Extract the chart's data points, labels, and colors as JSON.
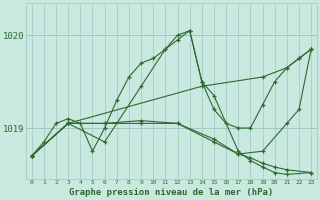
{
  "title": "Graphe pression niveau de la mer (hPa)",
  "bg_color": "#c8e8e0",
  "line_color": "#2d6a2d",
  "grid_color": "#a0c8c0",
  "xlim": [
    -0.5,
    23.5
  ],
  "ylim": [
    1018.45,
    1020.35
  ],
  "yticks": [
    1019,
    1020
  ],
  "xticks": [
    0,
    1,
    2,
    3,
    4,
    5,
    6,
    7,
    8,
    9,
    10,
    11,
    12,
    13,
    14,
    15,
    16,
    17,
    18,
    19,
    20,
    21,
    22,
    23
  ],
  "lines": [
    {
      "x": [
        0,
        1,
        2,
        3,
        4,
        5,
        6,
        7,
        8,
        9,
        10,
        11,
        12,
        13,
        14,
        15,
        16,
        17,
        18,
        19,
        20,
        21,
        22,
        23
      ],
      "y": [
        1018.7,
        1018.85,
        1019.05,
        1019.1,
        1019.05,
        1018.75,
        1019.0,
        1019.3,
        1019.55,
        1019.7,
        1019.75,
        1019.85,
        1019.95,
        1020.05,
        1019.5,
        1019.2,
        1019.05,
        1019.0,
        1019.0,
        1019.25,
        1019.5,
        1019.65,
        1019.75,
        1019.85
      ]
    },
    {
      "x": [
        0,
        3,
        14,
        19,
        21,
        22,
        23
      ],
      "y": [
        1018.7,
        1019.05,
        1019.45,
        1019.55,
        1019.65,
        1019.75,
        1019.85
      ]
    },
    {
      "x": [
        0,
        3,
        6,
        9,
        12,
        15,
        17,
        18,
        19,
        20,
        21,
        23
      ],
      "y": [
        1018.7,
        1019.05,
        1019.05,
        1019.05,
        1019.05,
        1018.88,
        1018.72,
        1018.68,
        1018.62,
        1018.58,
        1018.55,
        1018.52
      ]
    },
    {
      "x": [
        0,
        3,
        6,
        9,
        12,
        15,
        17,
        19,
        21,
        22,
        23
      ],
      "y": [
        1018.7,
        1019.05,
        1019.05,
        1019.08,
        1019.05,
        1018.85,
        1018.72,
        1018.75,
        1019.05,
        1019.2,
        1019.85
      ]
    },
    {
      "x": [
        0,
        3,
        6,
        9,
        11,
        12,
        13,
        14,
        15,
        17,
        18,
        19,
        20,
        21,
        23
      ],
      "y": [
        1018.7,
        1019.05,
        1018.85,
        1019.45,
        1019.85,
        1020.0,
        1020.05,
        1019.5,
        1019.35,
        1018.75,
        1018.65,
        1018.58,
        1018.52,
        1018.5,
        1018.52
      ]
    }
  ]
}
